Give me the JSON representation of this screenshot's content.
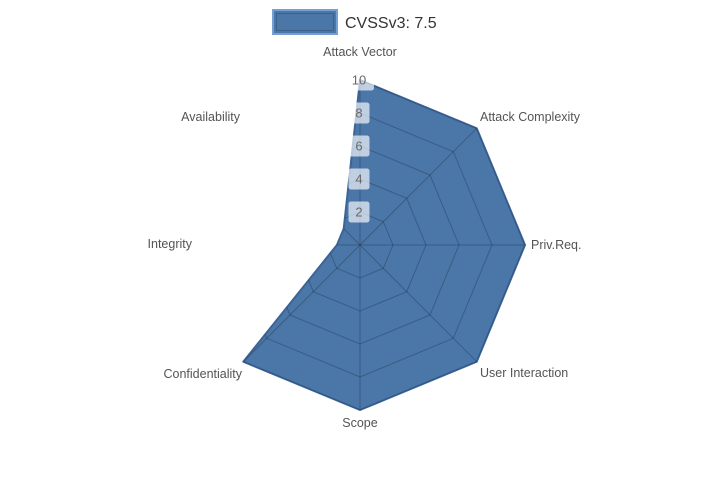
{
  "legend": {
    "label": "CVSSv3: 7.5",
    "swatch_fill": "#4a76a8",
    "swatch_border": "#76a0d4"
  },
  "chart_data": {
    "type": "radar",
    "categories": [
      "Attack Vector",
      "Attack Complexity",
      "Priv.Req.",
      "User Interaction",
      "Scope",
      "Confidentiality",
      "Integrity",
      "Availability"
    ],
    "series": [
      {
        "name": "CVSSv3: 7.5",
        "values": [
          10,
          10,
          10,
          10,
          10,
          10,
          1.4,
          1.4
        ]
      }
    ],
    "radial_ticks": [
      2,
      4,
      6,
      8,
      10
    ],
    "rlim": [
      0,
      10
    ],
    "grid": true,
    "grid_visible_only_inside_fill": true,
    "legend_position": "top-center",
    "start_axis": "top",
    "direction": "clockwise",
    "colors": {
      "fill": "#4a76a8",
      "stroke": "#3c6496",
      "grid_line": "rgba(0,0,0,0.22)",
      "axis_label": "#545454",
      "tick_label": "#696969",
      "tick_box": "rgba(255,255,255,0.65)"
    }
  }
}
